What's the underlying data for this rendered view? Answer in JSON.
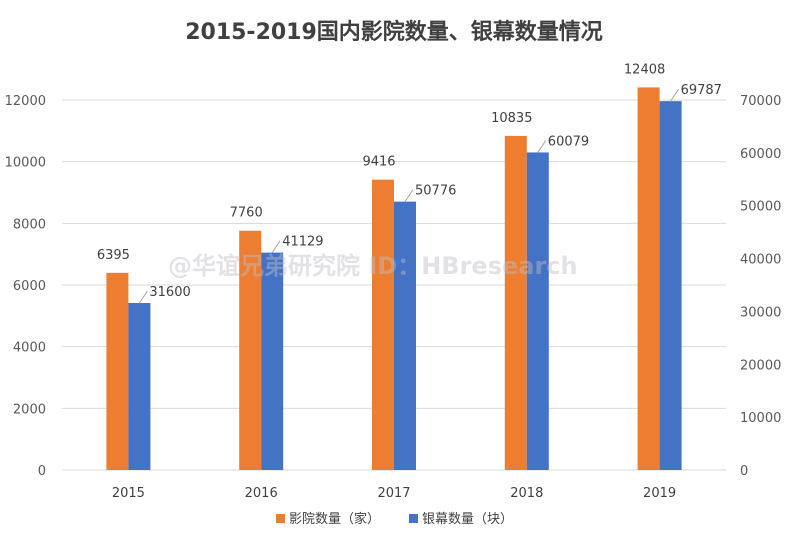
{
  "chart_data": {
    "type": "bar",
    "title": "2015-2019国内影院数量、银幕数量情况",
    "categories": [
      "2015",
      "2016",
      "2017",
      "2018",
      "2019"
    ],
    "series": [
      {
        "name": "影院数量（家）",
        "axis": "left",
        "color": "#ED7D31",
        "values": [
          6395,
          7760,
          9416,
          10835,
          12408
        ]
      },
      {
        "name": "银幕数量（块）",
        "axis": "right",
        "color": "#4472C4",
        "values": [
          31600,
          41129,
          50776,
          60079,
          69787
        ]
      }
    ],
    "y_left": {
      "ylim": [
        0,
        12000
      ],
      "ticks": [
        "0",
        "2000",
        "4000",
        "6000",
        "8000",
        "10000",
        "12000"
      ]
    },
    "y_right": {
      "ylim": [
        0,
        70000
      ],
      "ticks": [
        "0",
        "10000",
        "20000",
        "30000",
        "40000",
        "50000",
        "60000",
        "70000"
      ]
    },
    "grid": true,
    "legend": "bottom",
    "watermark": "@华谊兄弟研究院 ID：HBresearch"
  }
}
